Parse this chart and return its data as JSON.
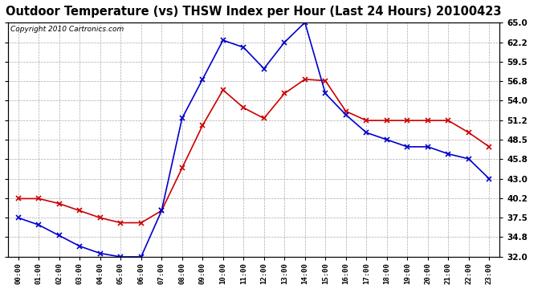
{
  "title": "Outdoor Temperature (vs) THSW Index per Hour (Last 24 Hours) 20100423",
  "copyright": "Copyright 2010 Cartronics.com",
  "hours": [
    "00:00",
    "01:00",
    "02:00",
    "03:00",
    "04:00",
    "05:00",
    "06:00",
    "07:00",
    "08:00",
    "09:00",
    "10:00",
    "11:00",
    "12:00",
    "13:00",
    "14:00",
    "15:00",
    "16:00",
    "17:00",
    "18:00",
    "19:00",
    "20:00",
    "21:00",
    "22:00",
    "23:00"
  ],
  "temp_red": [
    40.2,
    40.2,
    39.5,
    38.5,
    37.5,
    36.8,
    36.8,
    38.5,
    44.5,
    50.5,
    55.5,
    53.0,
    51.5,
    55.0,
    57.0,
    56.8,
    52.5,
    51.2,
    51.2,
    51.2,
    51.2,
    51.2,
    49.5,
    47.5
  ],
  "thsw_blue": [
    37.5,
    36.5,
    35.0,
    33.5,
    32.5,
    32.0,
    32.0,
    38.5,
    51.5,
    57.0,
    62.5,
    61.5,
    58.5,
    62.2,
    65.0,
    55.0,
    52.0,
    49.5,
    48.5,
    47.5,
    47.5,
    46.5,
    45.8,
    43.0
  ],
  "ylim": [
    32.0,
    65.0
  ],
  "yticks": [
    32.0,
    34.8,
    37.5,
    40.2,
    43.0,
    45.8,
    48.5,
    51.2,
    54.0,
    56.8,
    59.5,
    62.2,
    65.0
  ],
  "temp_color": "#cc0000",
  "thsw_color": "#0000cc",
  "bg_color": "#ffffff",
  "grid_color": "#aaaaaa",
  "title_fontsize": 10.5,
  "copyright_fontsize": 6.5
}
